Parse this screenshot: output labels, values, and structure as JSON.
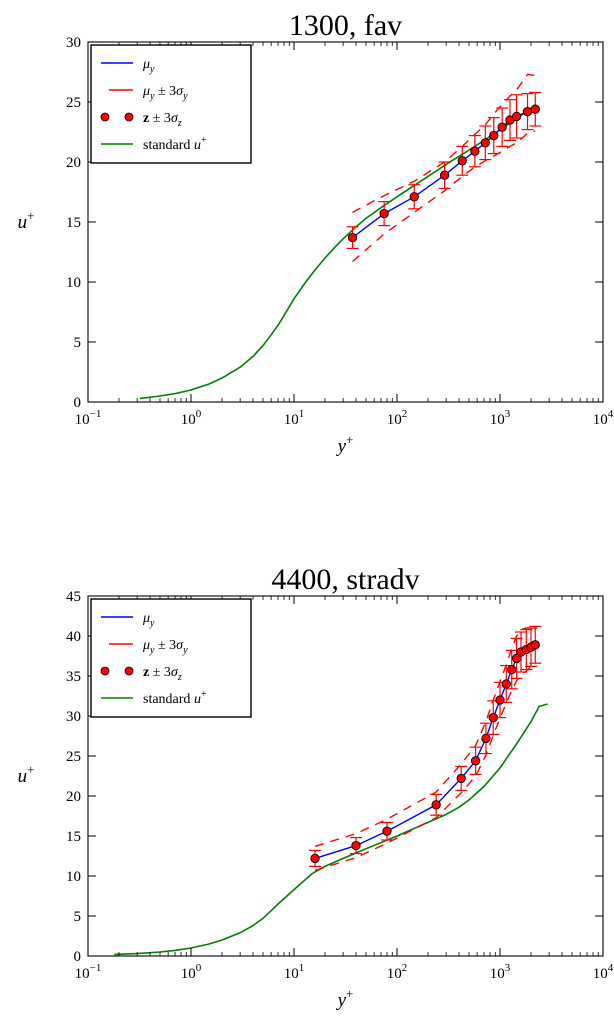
{
  "chart_data": [
    {
      "type": "line",
      "title": "1300, fav",
      "xlabel": "y+",
      "ylabel": "u+",
      "xscale": "log",
      "xlim": [
        0.1,
        10000
      ],
      "ylim": [
        0,
        30
      ],
      "xticks": [
        0.1,
        1,
        10,
        100,
        1000,
        10000
      ],
      "xtick_labels": [
        {
          "base": "10",
          "exp": "−1"
        },
        {
          "base": "10",
          "exp": "0"
        },
        {
          "base": "10",
          "exp": "1"
        },
        {
          "base": "10",
          "exp": "2"
        },
        {
          "base": "10",
          "exp": "3"
        },
        {
          "base": "10",
          "exp": "4"
        }
      ],
      "yticks": [
        0,
        5,
        10,
        15,
        20,
        25,
        30
      ],
      "grid": false,
      "legend_position": "top-left",
      "legend": [
        {
          "key": "mu",
          "label": "μy",
          "color": "#0000ff",
          "style": "solid"
        },
        {
          "key": "band",
          "label": "μy ± 3σy",
          "color": "#ff0000",
          "style": "dashed"
        },
        {
          "key": "obs",
          "label": "z ± 3σz",
          "color": "#ff0000",
          "style": "marker"
        },
        {
          "key": "standard",
          "label": "standard u+",
          "color": "#008000",
          "style": "solid"
        }
      ],
      "series": [
        {
          "key": "standard",
          "name": "standard u+",
          "x": [
            0.32,
            0.5,
            0.7,
            1.0,
            1.5,
            2.0,
            3.0,
            4.0,
            5.0,
            6.0,
            7.0,
            8.0,
            10.0,
            13.0,
            16.0,
            20.0,
            25.0,
            30.0,
            40.0,
            50.0,
            70.0,
            100.0,
            150.0,
            200.0,
            300.0,
            500.0,
            700.0,
            1000.0,
            1500.0,
            2100.0
          ],
          "y": [
            0.3,
            0.5,
            0.7,
            1.0,
            1.5,
            2.0,
            2.9,
            3.8,
            4.7,
            5.6,
            6.4,
            7.2,
            8.6,
            10.0,
            11.0,
            12.0,
            12.9,
            13.6,
            14.6,
            15.3,
            16.2,
            17.1,
            18.1,
            18.8,
            19.8,
            21.0,
            21.8,
            22.7,
            23.7,
            24.6
          ]
        },
        {
          "key": "mu",
          "name": "μy",
          "x": [
            37,
            75,
            147,
            290,
            430,
            570,
            720,
            870,
            1050,
            1250,
            1450,
            1850,
            2200
          ],
          "y": [
            13.7,
            15.7,
            17.1,
            18.9,
            20.1,
            20.9,
            21.6,
            22.2,
            22.9,
            23.5,
            23.8,
            24.2,
            24.4
          ]
        },
        {
          "key": "band_upper",
          "name": "μy ± 3σy",
          "x": [
            37,
            75,
            147,
            290,
            430,
            570,
            720,
            870,
            1050,
            1250,
            1450,
            1850,
            2200
          ],
          "y": [
            15.8,
            17.2,
            18.4,
            20.0,
            21.3,
            22.3,
            23.1,
            24.0,
            24.8,
            25.5,
            26.0,
            27.3,
            27.2
          ]
        },
        {
          "key": "band_lower",
          "name": "μy ± 3σy",
          "x": [
            37,
            75,
            147,
            290,
            430,
            570,
            720,
            870,
            1050,
            1250,
            1450,
            1850,
            2200
          ],
          "y": [
            11.7,
            14.0,
            15.8,
            17.6,
            18.8,
            19.6,
            20.1,
            20.5,
            20.9,
            21.3,
            21.6,
            22.4,
            22.6
          ]
        },
        {
          "key": "obs",
          "name": "z ± 3σz",
          "x": [
            37,
            75,
            147,
            290,
            430,
            570,
            720,
            870,
            1050,
            1250,
            1450,
            1850,
            2200
          ],
          "y": [
            13.7,
            15.7,
            17.1,
            18.9,
            20.1,
            20.9,
            21.6,
            22.2,
            22.9,
            23.5,
            23.8,
            24.2,
            24.4
          ],
          "err": [
            0.9,
            1.0,
            1.0,
            1.1,
            1.2,
            1.3,
            1.4,
            1.5,
            1.6,
            1.7,
            1.8,
            1.5,
            1.4
          ]
        }
      ]
    },
    {
      "type": "line",
      "title": "4400, stradv",
      "xlabel": "y+",
      "ylabel": "u+",
      "xscale": "log",
      "xlim": [
        0.1,
        10000
      ],
      "ylim": [
        0,
        45
      ],
      "xticks": [
        0.1,
        1,
        10,
        100,
        1000,
        10000
      ],
      "xtick_labels": [
        {
          "base": "10",
          "exp": "−1"
        },
        {
          "base": "10",
          "exp": "0"
        },
        {
          "base": "10",
          "exp": "1"
        },
        {
          "base": "10",
          "exp": "2"
        },
        {
          "base": "10",
          "exp": "3"
        },
        {
          "base": "10",
          "exp": "4"
        }
      ],
      "yticks": [
        0,
        5,
        10,
        15,
        20,
        25,
        30,
        35,
        40,
        45
      ],
      "grid": false,
      "legend_position": "top-left",
      "legend": [
        {
          "key": "mu",
          "label": "μy",
          "color": "#0000ff",
          "style": "solid"
        },
        {
          "key": "band",
          "label": "μy ± 3σy",
          "color": "#ff0000",
          "style": "dashed"
        },
        {
          "key": "obs",
          "label": "z ± 3σz",
          "color": "#ff0000",
          "style": "marker"
        },
        {
          "key": "standard",
          "label": "standard u+",
          "color": "#008000",
          "style": "solid"
        }
      ],
      "series": [
        {
          "key": "standard",
          "name": "standard u+",
          "x": [
            0.18,
            0.3,
            0.5,
            0.7,
            1.0,
            1.5,
            2.0,
            3.0,
            4.0,
            5.0,
            7.0,
            10.0,
            15.0,
            20.0,
            30.0,
            50.0,
            100.0,
            150.0,
            200.0,
            300.0,
            400.0,
            500.0,
            700.0,
            1000.0,
            1500.0,
            2000.0,
            2400.0,
            2900.0
          ],
          "y": [
            0.2,
            0.3,
            0.5,
            0.7,
            1.0,
            1.5,
            2.0,
            2.9,
            3.8,
            4.7,
            6.5,
            8.3,
            10.3,
            11.2,
            12.2,
            13.4,
            15.0,
            16.0,
            16.7,
            17.7,
            18.6,
            19.5,
            21.2,
            23.5,
            26.8,
            29.3,
            31.2,
            31.5
          ]
        },
        {
          "key": "mu",
          "name": "μy",
          "x": [
            16,
            40,
            80,
            240,
            420,
            580,
            730,
            860,
            1000,
            1150,
            1300,
            1450,
            1600,
            1800,
            2000,
            2200
          ],
          "y": [
            12.2,
            13.8,
            15.6,
            18.9,
            22.2,
            24.4,
            27.2,
            29.8,
            32.0,
            34.0,
            35.8,
            37.2,
            38.0,
            38.3,
            38.6,
            38.9
          ]
        },
        {
          "key": "band_upper",
          "name": "μy ± 3σy",
          "x": [
            16,
            40,
            80,
            240,
            420,
            580,
            730,
            860,
            1000,
            1150,
            1300,
            1450,
            1600,
            1800,
            2000,
            2200
          ],
          "y": [
            13.7,
            15.3,
            17.1,
            20.5,
            24.0,
            26.3,
            29.3,
            32.0,
            34.3,
            36.4,
            38.4,
            40.0,
            40.8,
            41.0,
            41.0,
            41.1
          ]
        },
        {
          "key": "band_lower",
          "name": "μy ± 3σy",
          "x": [
            16,
            40,
            80,
            240,
            420,
            580,
            730,
            860,
            1000,
            1150,
            1300,
            1450,
            1600,
            1800,
            2000,
            2200
          ],
          "y": [
            10.7,
            12.3,
            14.1,
            17.3,
            20.4,
            22.5,
            25.1,
            27.6,
            29.7,
            31.6,
            33.2,
            34.4,
            35.2,
            35.6,
            36.2,
            36.7
          ]
        },
        {
          "key": "obs",
          "name": "z ± 3σz",
          "x": [
            16,
            40,
            80,
            240,
            420,
            580,
            730,
            860,
            1000,
            1150,
            1300,
            1450,
            1600,
            1800,
            2000,
            2200
          ],
          "y": [
            12.2,
            13.8,
            15.6,
            18.9,
            22.2,
            24.4,
            27.2,
            29.8,
            32.0,
            34.0,
            35.8,
            37.2,
            38.0,
            38.3,
            38.6,
            38.9
          ],
          "err": [
            1.0,
            1.0,
            1.1,
            1.3,
            1.5,
            1.7,
            1.9,
            2.1,
            2.2,
            2.3,
            2.4,
            2.5,
            2.5,
            2.5,
            2.4,
            2.3
          ]
        }
      ]
    }
  ]
}
